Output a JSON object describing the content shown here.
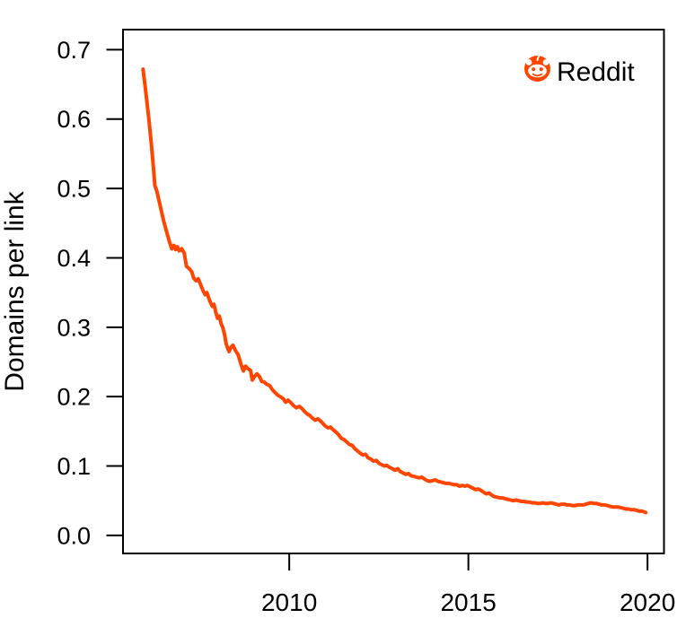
{
  "figure": {
    "kind": "line-chart",
    "background_color": "#FFFFFF",
    "axis_color": "#000000",
    "accent_color": "#FF4500"
  },
  "legend": {
    "label": "Reddit",
    "icon": "reddit-snoo-icon",
    "position": "top-right",
    "icon_circle_color": "#FF4500",
    "icon_face_color": "#FFFFFF",
    "text_color": "#000000"
  },
  "chart_data": {
    "type": "line",
    "title": "",
    "xlabel": "",
    "ylabel": "Domains per link",
    "xlim": [
      2005.36,
      2020.46
    ],
    "ylim": [
      -0.026,
      0.729
    ],
    "grid": false,
    "box": true,
    "legend_position": "top-right",
    "x_ticks": [
      {
        "value": 2010,
        "label": "2010"
      },
      {
        "value": 2015,
        "label": "2015"
      },
      {
        "value": 2020,
        "label": "2020"
      }
    ],
    "y_ticks": [
      {
        "value": 0.0,
        "label": "0.0"
      },
      {
        "value": 0.1,
        "label": "0.1"
      },
      {
        "value": 0.2,
        "label": "0.2"
      },
      {
        "value": 0.3,
        "label": "0.3"
      },
      {
        "value": 0.4,
        "label": "0.4"
      },
      {
        "value": 0.5,
        "label": "0.5"
      },
      {
        "value": 0.6,
        "label": "0.6"
      },
      {
        "value": 0.7,
        "label": "0.7"
      }
    ],
    "legend": {
      "label": "Reddit"
    },
    "series": [
      {
        "name": "Reddit",
        "color": "#FF4500",
        "line_width": 4,
        "x": [
          2005.92,
          2006.0,
          2006.08,
          2006.15,
          2006.21,
          2006.25,
          2006.3,
          2006.35,
          2006.42,
          2006.5,
          2006.58,
          2006.65,
          2006.72,
          2006.78,
          2006.83,
          2006.88,
          2006.93,
          2007.0,
          2007.07,
          2007.13,
          2007.2,
          2007.28,
          2007.33,
          2007.4,
          2007.46,
          2007.53,
          2007.6,
          2007.65,
          2007.7,
          2007.78,
          2007.85,
          2007.9,
          2007.95,
          2008.0,
          2008.05,
          2008.1,
          2008.15,
          2008.2,
          2008.24,
          2008.28,
          2008.32,
          2008.37,
          2008.43,
          2008.5,
          2008.57,
          2008.65,
          2008.72,
          2008.78,
          2008.85,
          2008.92,
          2008.97,
          2009.03,
          2009.1,
          2009.17,
          2009.23,
          2009.3,
          2009.37,
          2009.45,
          2009.53,
          2009.6,
          2009.68,
          2009.75,
          2009.83,
          2009.9,
          2009.97,
          2010.05,
          2010.12,
          2010.2,
          2010.28,
          2010.35,
          2010.42,
          2010.5,
          2010.57,
          2010.65,
          2010.72,
          2010.8,
          2010.87,
          2010.93,
          2011.0,
          2011.08,
          2011.15,
          2011.23,
          2011.3,
          2011.38,
          2011.45,
          2011.53,
          2011.6,
          2011.68,
          2011.75,
          2011.83,
          2011.9,
          2011.97,
          2012.05,
          2012.13,
          2012.2,
          2012.28,
          2012.35,
          2012.43,
          2012.5,
          2012.58,
          2012.65,
          2012.72,
          2012.8,
          2012.88,
          2012.95,
          2013.03,
          2013.1,
          2013.18,
          2013.25,
          2013.33,
          2013.4,
          2013.48,
          2013.55,
          2013.63,
          2013.7,
          2013.78,
          2013.85,
          2013.93,
          2014.0,
          2014.08,
          2014.15,
          2014.23,
          2014.3,
          2014.38,
          2014.45,
          2014.53,
          2014.6,
          2014.68,
          2014.75,
          2014.83,
          2014.9,
          2014.97,
          2015.05,
          2015.13,
          2015.2,
          2015.28,
          2015.35,
          2015.43,
          2015.5,
          2015.58,
          2015.65,
          2015.72,
          2015.8,
          2015.88,
          2015.95,
          2016.03,
          2016.1,
          2016.18,
          2016.25,
          2016.33,
          2016.4,
          2016.48,
          2016.55,
          2016.63,
          2016.7,
          2016.78,
          2016.85,
          2016.93,
          2017.0,
          2017.08,
          2017.15,
          2017.23,
          2017.3,
          2017.38,
          2017.45,
          2017.53,
          2017.6,
          2017.68,
          2017.75,
          2017.83,
          2017.9,
          2017.98,
          2018.05,
          2018.13,
          2018.2,
          2018.28,
          2018.35,
          2018.43,
          2018.5,
          2018.58,
          2018.65,
          2018.72,
          2018.8,
          2018.88,
          2018.95,
          2019.03,
          2019.1,
          2019.18,
          2019.25,
          2019.33,
          2019.4,
          2019.48,
          2019.55,
          2019.63,
          2019.7,
          2019.78,
          2019.85,
          2019.95
        ],
        "y": [
          0.672,
          0.638,
          0.601,
          0.565,
          0.53,
          0.504,
          0.497,
          0.486,
          0.47,
          0.452,
          0.437,
          0.424,
          0.413,
          0.418,
          0.412,
          0.416,
          0.41,
          0.413,
          0.407,
          0.388,
          0.385,
          0.38,
          0.371,
          0.367,
          0.37,
          0.361,
          0.352,
          0.347,
          0.35,
          0.338,
          0.33,
          0.333,
          0.322,
          0.313,
          0.316,
          0.305,
          0.299,
          0.288,
          0.276,
          0.27,
          0.265,
          0.271,
          0.274,
          0.266,
          0.261,
          0.247,
          0.237,
          0.244,
          0.24,
          0.238,
          0.224,
          0.229,
          0.233,
          0.229,
          0.222,
          0.221,
          0.218,
          0.216,
          0.21,
          0.206,
          0.202,
          0.2,
          0.197,
          0.192,
          0.195,
          0.191,
          0.187,
          0.184,
          0.186,
          0.183,
          0.179,
          0.175,
          0.173,
          0.169,
          0.166,
          0.168,
          0.165,
          0.162,
          0.158,
          0.155,
          0.156,
          0.152,
          0.149,
          0.145,
          0.14,
          0.138,
          0.135,
          0.131,
          0.13,
          0.125,
          0.122,
          0.119,
          0.116,
          0.117,
          0.112,
          0.11,
          0.107,
          0.108,
          0.104,
          0.102,
          0.1,
          0.101,
          0.098,
          0.096,
          0.094,
          0.096,
          0.092,
          0.09,
          0.088,
          0.089,
          0.086,
          0.085,
          0.084,
          0.083,
          0.084,
          0.081,
          0.079,
          0.078,
          0.079,
          0.08,
          0.078,
          0.077,
          0.076,
          0.075,
          0.075,
          0.074,
          0.073,
          0.073,
          0.071,
          0.072,
          0.071,
          0.072,
          0.07,
          0.068,
          0.066,
          0.067,
          0.065,
          0.062,
          0.06,
          0.061,
          0.058,
          0.056,
          0.055,
          0.054,
          0.054,
          0.053,
          0.052,
          0.051,
          0.05,
          0.051,
          0.05,
          0.049,
          0.049,
          0.048,
          0.048,
          0.047,
          0.047,
          0.046,
          0.046,
          0.047,
          0.046,
          0.046,
          0.047,
          0.046,
          0.045,
          0.044,
          0.045,
          0.045,
          0.044,
          0.044,
          0.043,
          0.043,
          0.044,
          0.044,
          0.044,
          0.045,
          0.046,
          0.047,
          0.046,
          0.046,
          0.045,
          0.044,
          0.044,
          0.043,
          0.042,
          0.041,
          0.041,
          0.041,
          0.04,
          0.039,
          0.038,
          0.038,
          0.037,
          0.037,
          0.036,
          0.035,
          0.035,
          0.033
        ]
      }
    ]
  }
}
